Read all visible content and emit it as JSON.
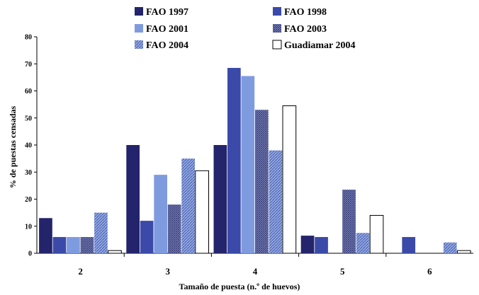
{
  "chart_data": {
    "type": "bar",
    "categories": [
      "2",
      "3",
      "4",
      "5",
      "6"
    ],
    "series": [
      {
        "name": "FAO 1997",
        "values": [
          13,
          40,
          40,
          6.5,
          0
        ],
        "color": "#23246b",
        "pattern": "solid"
      },
      {
        "name": "FAO 1998",
        "values": [
          6,
          12,
          68.5,
          6,
          6
        ],
        "color": "#3b4aa8",
        "pattern": "solid"
      },
      {
        "name": "FAO 2001",
        "values": [
          6,
          29,
          65.5,
          0,
          0
        ],
        "color": "#7f9be0",
        "pattern": "solid"
      },
      {
        "name": "FAO 2003",
        "values": [
          6,
          18,
          53,
          23.5,
          0
        ],
        "color": "#5b6aa8",
        "pattern": "hatch"
      },
      {
        "name": "FAO 2004",
        "values": [
          15,
          35,
          38,
          7.5,
          4
        ],
        "color": "#7e98d8",
        "pattern": "hatch-light"
      },
      {
        "name": "Guadiamar 2004",
        "values": [
          1,
          30.5,
          54.5,
          14,
          1
        ],
        "color": "#ffffff",
        "pattern": "outline"
      }
    ],
    "ylabel": "% de puestas censadas",
    "xlabel": "Tamaño de puesta (n.º de huevos)",
    "ylim": [
      0,
      80
    ],
    "yticks": [
      "0",
      "10",
      "20",
      "30",
      "40",
      "50",
      "60",
      "70",
      "80"
    ],
    "legend_position": "top"
  }
}
